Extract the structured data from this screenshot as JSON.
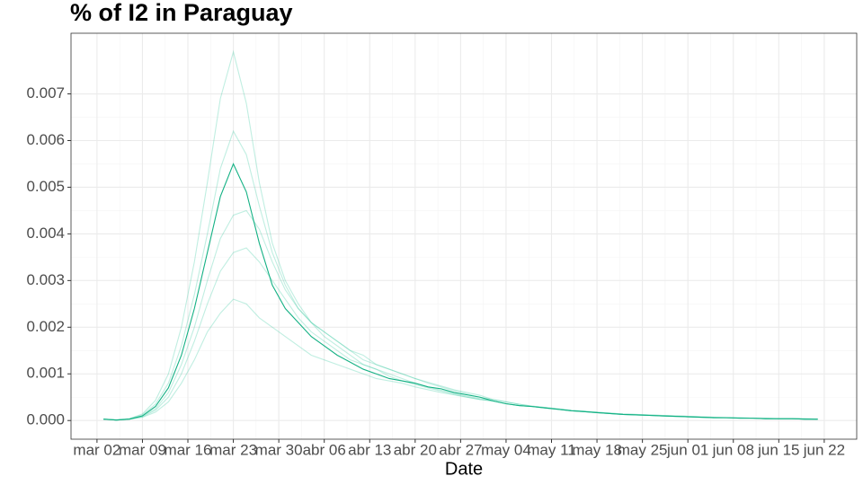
{
  "chart_data": {
    "type": "line",
    "title": "% of I2 in  Paraguay",
    "x_label": "Date",
    "x": [
      "mar 03",
      "mar 05",
      "mar 07",
      "mar 09",
      "mar 11",
      "mar 13",
      "mar 15",
      "mar 17",
      "mar 19",
      "mar 21",
      "mar 23",
      "mar 25",
      "mar 27",
      "mar 29",
      "mar 31",
      "abr 02",
      "abr 04",
      "abr 06",
      "abr 08",
      "abr 10",
      "abr 12",
      "abr 14",
      "abr 16",
      "abr 18",
      "abr 20",
      "abr 22",
      "abr 24",
      "abr 26",
      "abr 28",
      "abr 30",
      "may 02",
      "may 04",
      "may 06",
      "may 08",
      "may 10",
      "may 12",
      "may 14",
      "may 16",
      "may 18",
      "may 20",
      "may 22",
      "may 24",
      "may 26",
      "may 28",
      "may 30",
      "jun 01",
      "jun 03",
      "jun 05",
      "jun 07",
      "jun 09",
      "jun 11",
      "jun 13",
      "jun 15",
      "jun 17",
      "jun 19",
      "jun 21"
    ],
    "xlim": [
      "feb 27",
      "jun 27"
    ],
    "xticks": [
      "mar 02",
      "mar 09",
      "mar 16",
      "mar 23",
      "mar 30",
      "abr 06",
      "abr 13",
      "abr 20",
      "abr 27",
      "may 04",
      "may 11",
      "may 18",
      "may 25",
      "jun 01",
      "jun 08",
      "jun 15",
      "jun 22"
    ],
    "ylim": [
      -0.0004,
      0.0083
    ],
    "yticks": [
      {
        "value": 0,
        "label": "0.000"
      },
      0.001,
      0.002,
      0.003,
      0.004,
      0.005,
      0.006,
      0.007
    ],
    "grid": true,
    "series": [
      {
        "color": "#2ec79a",
        "opacity": 0.3,
        "values": [
          3e-05,
          1e-05,
          4e-05,
          0.00014,
          0.00043,
          0.001,
          0.002,
          0.0034,
          0.0051,
          0.0069,
          0.0079,
          0.0068,
          0.0051,
          0.0038,
          0.003,
          0.0025,
          0.0021,
          0.0018,
          0.0016,
          0.0014,
          0.0012,
          0.0011,
          0.00095,
          0.00085,
          0.00077,
          0.0007,
          0.00063,
          0.00056,
          0.0005,
          0.00045,
          0.00042,
          0.00036,
          0.00032,
          0.0003,
          0.00027,
          0.00024,
          0.00021,
          0.00019,
          0.00017,
          0.00015,
          0.00013,
          0.00012,
          0.00011,
          0.0001,
          9e-05,
          8e-05,
          7e-05,
          6e-05,
          6e-05,
          5e-05,
          5e-05,
          4e-05,
          4e-05,
          4e-05,
          3e-05,
          3e-05
        ]
      },
      {
        "color": "#2ec79a",
        "opacity": 0.3,
        "values": [
          3e-05,
          2e-05,
          4e-05,
          0.00012,
          0.00035,
          0.0008,
          0.0016,
          0.0027,
          0.004,
          0.0054,
          0.0062,
          0.0057,
          0.0046,
          0.0036,
          0.0029,
          0.0024,
          0.0021,
          0.0019,
          0.0017,
          0.0015,
          0.0013,
          0.0012,
          0.0011,
          0.001,
          0.0009,
          0.0008,
          0.00072,
          0.00064,
          0.00057,
          0.0005,
          0.00045,
          0.0004,
          0.00035,
          0.00031,
          0.00028,
          0.00025,
          0.00022,
          0.0002,
          0.00018,
          0.00016,
          0.00014,
          0.00013,
          0.00012,
          0.00011,
          0.0001,
          9e-05,
          8e-05,
          7e-05,
          6e-05,
          6e-05,
          5e-05,
          5e-05,
          4e-05,
          4e-05,
          4e-05,
          3e-05
        ]
      },
      {
        "color": "#2ec79a",
        "opacity": 0.3,
        "values": [
          3e-05,
          1e-05,
          3e-05,
          9e-05,
          0.00025,
          0.0006,
          0.0012,
          0.002,
          0.003,
          0.0039,
          0.0044,
          0.0045,
          0.0041,
          0.0034,
          0.0028,
          0.0024,
          0.0021,
          0.0019,
          0.0017,
          0.0015,
          0.0014,
          0.0012,
          0.0011,
          0.001,
          0.0009,
          0.00082,
          0.00074,
          0.00066,
          0.0006,
          0.00054,
          0.00045,
          0.0004,
          0.00035,
          0.00031,
          0.00028,
          0.00025,
          0.00022,
          0.0002,
          0.00018,
          0.00016,
          0.00014,
          0.00013,
          0.00012,
          0.00011,
          0.0001,
          9e-05,
          8e-05,
          7e-05,
          6e-05,
          6e-05,
          5e-05,
          5e-05,
          4e-05,
          4e-05,
          4e-05,
          3e-05
        ]
      },
      {
        "color": "#2ec79a",
        "opacity": 0.3,
        "values": [
          3e-05,
          1e-05,
          3e-05,
          8e-05,
          0.00022,
          0.0005,
          0.001,
          0.0017,
          0.0025,
          0.0032,
          0.0036,
          0.0037,
          0.0034,
          0.003,
          0.0026,
          0.0022,
          0.0019,
          0.0017,
          0.0015,
          0.0013,
          0.0012,
          0.0011,
          0.001,
          0.0009,
          0.0008,
          0.00072,
          0.00065,
          0.00058,
          0.00052,
          0.00047,
          0.00042,
          0.00036,
          0.00032,
          0.0003,
          0.00027,
          0.00024,
          0.00021,
          0.00019,
          0.00017,
          0.00015,
          0.00013,
          0.00012,
          0.00011,
          0.0001,
          9e-05,
          8e-05,
          7e-05,
          6e-05,
          6e-05,
          5e-05,
          5e-05,
          4e-05,
          4e-05,
          4e-05,
          3e-05,
          3e-05
        ]
      },
      {
        "color": "#2ec79a",
        "opacity": 0.3,
        "values": [
          3e-05,
          1e-05,
          3e-05,
          7e-05,
          0.00018,
          0.0004,
          0.0008,
          0.0013,
          0.0019,
          0.0023,
          0.0026,
          0.0025,
          0.0022,
          0.002,
          0.0018,
          0.0016,
          0.0014,
          0.0013,
          0.0012,
          0.0011,
          0.001,
          0.0009,
          0.00085,
          0.0008,
          0.00072,
          0.00066,
          0.0006,
          0.00055,
          0.0005,
          0.00045,
          0.00042,
          0.00036,
          0.00032,
          0.0003,
          0.00027,
          0.00024,
          0.00021,
          0.00019,
          0.00017,
          0.00015,
          0.00013,
          0.00012,
          0.00011,
          0.0001,
          9e-05,
          8e-05,
          7e-05,
          6e-05,
          6e-05,
          5e-05,
          5e-05,
          4e-05,
          4e-05,
          4e-05,
          3e-05,
          3e-05
        ]
      },
      {
        "color": "#14b184",
        "opacity": 1,
        "values": [
          3e-05,
          1e-05,
          3e-05,
          0.0001,
          0.0003,
          0.0007,
          0.0014,
          0.0024,
          0.0036,
          0.0048,
          0.0055,
          0.0049,
          0.0038,
          0.0029,
          0.0024,
          0.0021,
          0.0018,
          0.0016,
          0.0014,
          0.00125,
          0.0011,
          0.001,
          0.0009,
          0.00085,
          0.0008,
          0.00072,
          0.00068,
          0.0006,
          0.00055,
          0.0005,
          0.00042,
          0.00036,
          0.00032,
          0.0003,
          0.00027,
          0.00024,
          0.00021,
          0.00019,
          0.00017,
          0.00015,
          0.00013,
          0.00012,
          0.00011,
          0.0001,
          9e-05,
          8e-05,
          7e-05,
          6e-05,
          6e-05,
          5e-05,
          5e-05,
          4e-05,
          4e-05,
          4e-05,
          3e-05,
          3e-05
        ]
      }
    ]
  }
}
